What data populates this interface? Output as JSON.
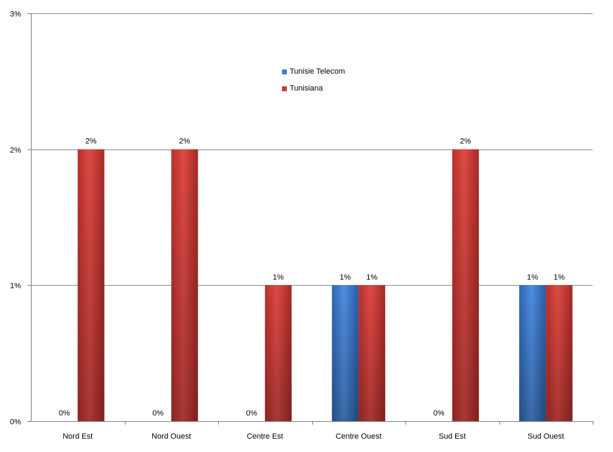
{
  "chart_data": {
    "type": "bar",
    "categories": [
      "Nord Est",
      "Nord Ouest",
      "Centre Est",
      "Centre Ouest",
      "Sud Est",
      "Sud Ouest"
    ],
    "series": [
      {
        "name": "Tunisie Telecom",
        "values": [
          0,
          0,
          0,
          1,
          0,
          1
        ],
        "labels": [
          "0%",
          "0%",
          "0%",
          "1%",
          "0%",
          "1%"
        ]
      },
      {
        "name": "Tunisiana",
        "values": [
          2,
          2,
          1,
          1,
          2,
          1
        ],
        "labels": [
          "2%",
          "2%",
          "1%",
          "1%",
          "2%",
          "1%"
        ]
      }
    ],
    "y_ticks": [
      "0%",
      "1%",
      "2%",
      "3%"
    ],
    "ylim": [
      0,
      3
    ],
    "grid": true,
    "legend_position": "top-center",
    "colors": {
      "Tunisie Telecom": "#3f7fd0",
      "Tunisiana": "#d33a36",
      "grid": "#8c8c8c",
      "axis": "#7f7f7f"
    }
  }
}
